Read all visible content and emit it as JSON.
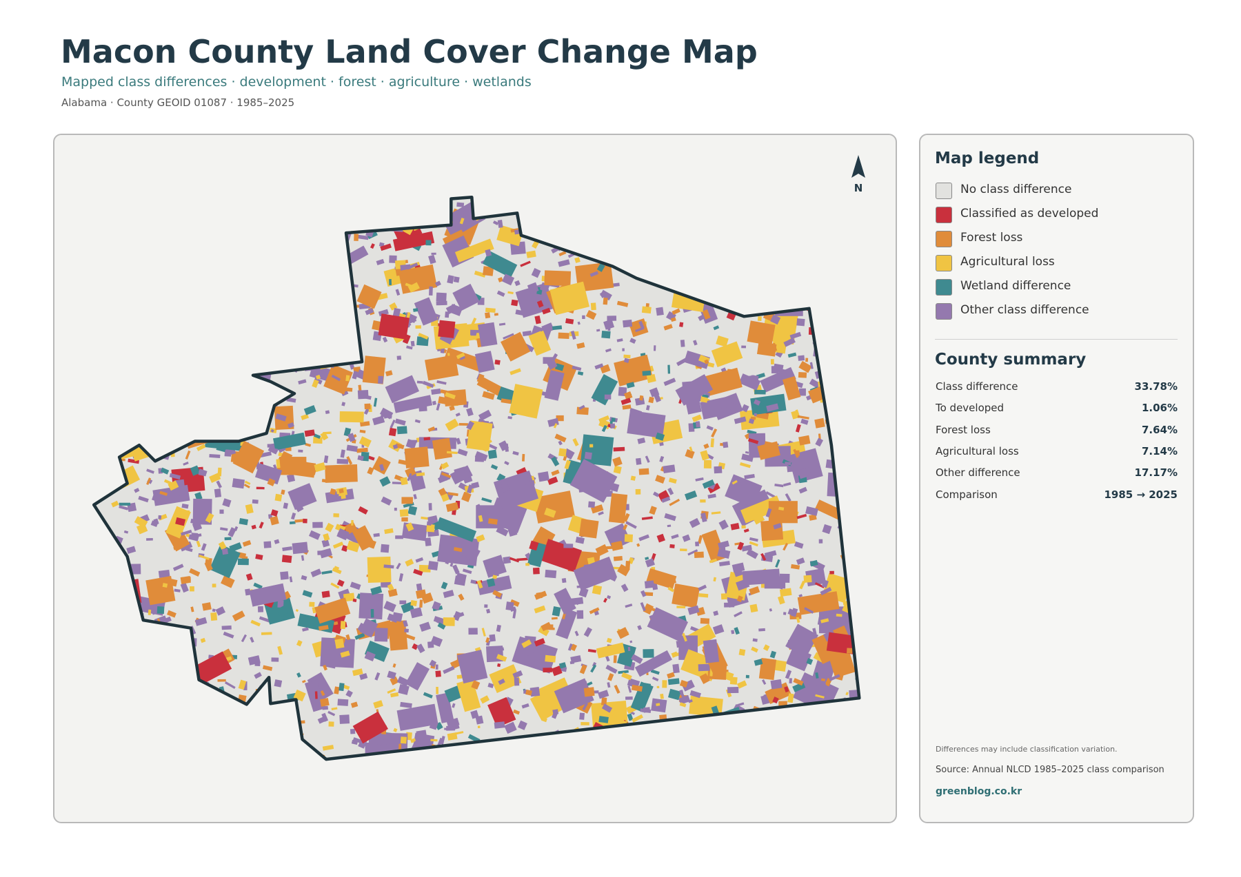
{
  "header": {
    "title": "Macon County Land Cover Change Map",
    "subtitle": "Mapped class differences · development · forest · agriculture · wetlands",
    "meta": "Alabama · County GEOID 01087 · 1985–2025"
  },
  "map": {
    "north": "N"
  },
  "legend": {
    "title": "Map legend",
    "items": [
      {
        "label": "No class difference",
        "color": "#e2e2df"
      },
      {
        "label": "Classified as developed",
        "color": "#c9303d"
      },
      {
        "label": "Forest loss",
        "color": "#e08c3a"
      },
      {
        "label": "Agricultural loss",
        "color": "#f0c443"
      },
      {
        "label": "Wetland difference",
        "color": "#3f8a90"
      },
      {
        "label": "Other class difference",
        "color": "#9479ae"
      }
    ]
  },
  "summary": {
    "title": "County summary",
    "rows": [
      [
        "Class difference",
        "33.78%"
      ],
      [
        "To developed",
        "1.06%"
      ],
      [
        "Forest loss",
        "7.64%"
      ],
      [
        "Agricultural loss",
        "7.14%"
      ],
      [
        "Other difference",
        "17.17%"
      ],
      [
        "Comparison",
        "1985 → 2025"
      ]
    ]
  },
  "footer": {
    "note": "Differences may include classification variation.",
    "source": "Source: Annual NLCD 1985–2025 class comparison",
    "site": "greenblog.co.kr"
  }
}
